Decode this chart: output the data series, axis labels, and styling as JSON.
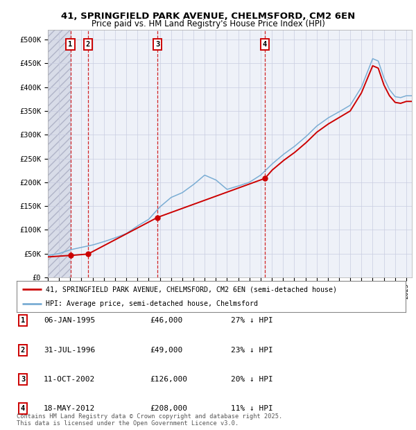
{
  "title_line1": "41, SPRINGFIELD PARK AVENUE, CHELMSFORD, CM2 6EN",
  "title_line2": "Price paid vs. HM Land Registry's House Price Index (HPI)",
  "ylim": [
    0,
    520000
  ],
  "yticks": [
    0,
    50000,
    100000,
    150000,
    200000,
    250000,
    300000,
    350000,
    400000,
    450000,
    500000
  ],
  "ytick_labels": [
    "£0",
    "£50K",
    "£100K",
    "£150K",
    "£200K",
    "£250K",
    "£300K",
    "£350K",
    "£400K",
    "£450K",
    "£500K"
  ],
  "sale_year_floats": [
    1995.014,
    1996.58,
    2002.78,
    2012.375
  ],
  "sale_prices": [
    46000,
    49000,
    126000,
    208000
  ],
  "sale_labels": [
    "1",
    "2",
    "3",
    "4"
  ],
  "red_line_color": "#cc0000",
  "blue_line_color": "#7aadd4",
  "marker_color": "#cc0000",
  "dashed_line_color": "#cc0000",
  "hatch_bg_color": "#d8dce8",
  "legend_label_red": "41, SPRINGFIELD PARK AVENUE, CHELMSFORD, CM2 6EN (semi-detached house)",
  "legend_label_blue": "HPI: Average price, semi-detached house, Chelmsford",
  "table_entries": [
    {
      "num": "1",
      "date": "06-JAN-1995",
      "price": "£46,000",
      "pct": "27% ↓ HPI"
    },
    {
      "num": "2",
      "date": "31-JUL-1996",
      "price": "£49,000",
      "pct": "23% ↓ HPI"
    },
    {
      "num": "3",
      "date": "11-OCT-2002",
      "price": "£126,000",
      "pct": "20% ↓ HPI"
    },
    {
      "num": "4",
      "date": "18-MAY-2012",
      "price": "£208,000",
      "pct": "11% ↓ HPI"
    }
  ],
  "footer_text": "Contains HM Land Registry data © Crown copyright and database right 2025.\nThis data is licensed under the Open Government Licence v3.0.",
  "background_color": "#ffffff",
  "plot_bg_color": "#eef1f8",
  "xlim_start": 1993.0,
  "xlim_end": 2025.5,
  "hpi_key_years": [
    1993,
    1994,
    1995,
    1996,
    1997,
    1998,
    1999,
    2000,
    2001,
    2002,
    2003,
    2004,
    2005,
    2006,
    2007,
    2008,
    2009,
    2010,
    2011,
    2012,
    2013,
    2014,
    2015,
    2016,
    2017,
    2018,
    2019,
    2020,
    2021,
    2022,
    2022.5,
    2023,
    2023.5,
    2024,
    2024.5,
    2025
  ],
  "hpi_key_values": [
    46000,
    50000,
    58000,
    63000,
    68000,
    75000,
    83000,
    92000,
    108000,
    122000,
    148000,
    168000,
    178000,
    195000,
    215000,
    205000,
    185000,
    192000,
    200000,
    215000,
    238000,
    258000,
    275000,
    295000,
    318000,
    335000,
    348000,
    362000,
    400000,
    460000,
    455000,
    420000,
    395000,
    380000,
    378000,
    382000
  ],
  "price_key_years": [
    1993.0,
    1995.014,
    1996.58,
    2002.78,
    2012.375,
    2013,
    2014,
    2015,
    2016,
    2017,
    2018,
    2019,
    2020,
    2021,
    2022,
    2022.5,
    2023,
    2023.5,
    2024,
    2024.5,
    2025
  ],
  "price_key_values": [
    43000,
    46000,
    49000,
    126000,
    208000,
    225000,
    245000,
    262000,
    282000,
    305000,
    322000,
    336000,
    350000,
    388000,
    445000,
    440000,
    405000,
    382000,
    368000,
    366000,
    370000
  ]
}
